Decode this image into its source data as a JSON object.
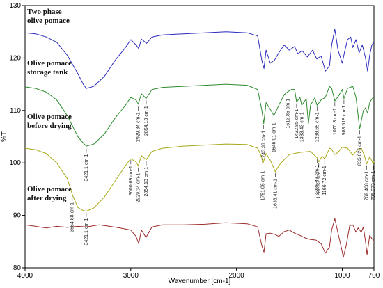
{
  "chart_data": {
    "type": "line",
    "title": "",
    "xlabel": "Wavenumber [cm-1]",
    "ylabel": "%T",
    "xlim": [
      4000,
      700
    ],
    "ylim": [
      80,
      130
    ],
    "x_ticks": [
      {
        "value": 4000,
        "label": "4000"
      },
      {
        "value": 3000,
        "label": "3000"
      },
      {
        "value": 2000,
        "label": "2000"
      },
      {
        "value": 1000,
        "label": "1000"
      },
      {
        "value": 700,
        "label": "700"
      }
    ],
    "y_ticks": [
      {
        "value": 130,
        "label": "130"
      },
      {
        "value": 120,
        "label": "120"
      },
      {
        "value": 110,
        "label": "110"
      },
      {
        "value": 100,
        "label": "100"
      },
      {
        "value": 90,
        "label": "90"
      },
      {
        "value": 80,
        "label": "80"
      }
    ],
    "series": [
      {
        "name": "Two phase olive pomace",
        "color": "#2b2bbf",
        "points": [
          [
            4000,
            124.8
          ],
          [
            3900,
            124.6
          ],
          [
            3800,
            124.0
          ],
          [
            3700,
            123.0
          ],
          [
            3600,
            120.5
          ],
          [
            3500,
            117.0
          ],
          [
            3450,
            115.0
          ],
          [
            3421,
            114.2
          ],
          [
            3350,
            114.6
          ],
          [
            3250,
            116.5
          ],
          [
            3150,
            119.5
          ],
          [
            3050,
            122.0
          ],
          [
            3000,
            123.5
          ],
          [
            2950,
            122.5
          ],
          [
            2925,
            121.8
          ],
          [
            2900,
            123.6
          ],
          [
            2850,
            122.8
          ],
          [
            2800,
            124.0
          ],
          [
            2700,
            124.4
          ],
          [
            2500,
            124.6
          ],
          [
            2300,
            124.8
          ],
          [
            2100,
            125.0
          ],
          [
            1900,
            124.8
          ],
          [
            1800,
            124.2
          ],
          [
            1760,
            119.5
          ],
          [
            1740,
            118.0
          ],
          [
            1720,
            121.5
          ],
          [
            1680,
            119.0
          ],
          [
            1640,
            119.6
          ],
          [
            1600,
            121.0
          ],
          [
            1550,
            122.5
          ],
          [
            1500,
            121.5
          ],
          [
            1450,
            122.2
          ],
          [
            1420,
            120.8
          ],
          [
            1380,
            121.4
          ],
          [
            1330,
            120.2
          ],
          [
            1280,
            121.5
          ],
          [
            1240,
            119.8
          ],
          [
            1200,
            120.4
          ],
          [
            1160,
            117.5
          ],
          [
            1120,
            118.5
          ],
          [
            1100,
            122.5
          ],
          [
            1070,
            125.5
          ],
          [
            1040,
            121.5
          ],
          [
            1000,
            119.0
          ],
          [
            980,
            121.0
          ],
          [
            950,
            123.5
          ],
          [
            920,
            124.0
          ],
          [
            900,
            122.0
          ],
          [
            870,
            123.5
          ],
          [
            840,
            121.0
          ],
          [
            810,
            122.5
          ],
          [
            780,
            120.0
          ],
          [
            760,
            117.5
          ],
          [
            740,
            120.5
          ],
          [
            720,
            122.5
          ],
          [
            700,
            123.0
          ]
        ]
      },
      {
        "name": "Olive pomace storage tank",
        "color": "#2e8b2e",
        "points": [
          [
            4000,
            114.5
          ],
          [
            3900,
            114.2
          ],
          [
            3800,
            113.5
          ],
          [
            3700,
            112.0
          ],
          [
            3600,
            109.0
          ],
          [
            3500,
            105.0
          ],
          [
            3450,
            103.8
          ],
          [
            3421,
            103.2
          ],
          [
            3350,
            103.6
          ],
          [
            3250,
            105.5
          ],
          [
            3150,
            108.5
          ],
          [
            3050,
            111.0
          ],
          [
            3000,
            112.5
          ],
          [
            2950,
            112.0
          ],
          [
            2929,
            111.2
          ],
          [
            2900,
            113.2
          ],
          [
            2854,
            112.3
          ],
          [
            2800,
            114.0
          ],
          [
            2700,
            114.4
          ],
          [
            2500,
            114.6
          ],
          [
            2300,
            114.8
          ],
          [
            2100,
            115.0
          ],
          [
            1900,
            114.8
          ],
          [
            1800,
            114.0
          ],
          [
            1760,
            110.0
          ],
          [
            1743,
            107.5
          ],
          [
            1720,
            111.5
          ],
          [
            1680,
            110.2
          ],
          [
            1646,
            109.0
          ],
          [
            1600,
            111.0
          ],
          [
            1550,
            113.0
          ],
          [
            1513,
            113.6
          ],
          [
            1480,
            114.0
          ],
          [
            1450,
            114.0
          ],
          [
            1432,
            111.6
          ],
          [
            1400,
            112.5
          ],
          [
            1383,
            111.0
          ],
          [
            1340,
            112.2
          ],
          [
            1320,
            107.5
          ],
          [
            1300,
            111.0
          ],
          [
            1260,
            112.4
          ],
          [
            1238,
            111.0
          ],
          [
            1200,
            112.0
          ],
          [
            1160,
            112.5
          ],
          [
            1120,
            114.6
          ],
          [
            1100,
            114.2
          ],
          [
            1070,
            111.8
          ],
          [
            1040,
            112.6
          ],
          [
            1000,
            114.0
          ],
          [
            984,
            112.3
          ],
          [
            950,
            114.2
          ],
          [
            900,
            114.6
          ],
          [
            870,
            112.5
          ],
          [
            835,
            106.5
          ],
          [
            800,
            110.0
          ],
          [
            780,
            110.5
          ],
          [
            760,
            109.5
          ],
          [
            740,
            111.5
          ],
          [
            720,
            112.2
          ],
          [
            700,
            112.5
          ]
        ]
      },
      {
        "name": "Olive pomace before drying",
        "color": "#a8a816",
        "points": [
          [
            4000,
            102.8
          ],
          [
            3900,
            102.5
          ],
          [
            3800,
            101.8
          ],
          [
            3700,
            100.0
          ],
          [
            3600,
            97.0
          ],
          [
            3550,
            93.8
          ],
          [
            3500,
            91.5
          ],
          [
            3450,
            90.9
          ],
          [
            3421,
            90.8
          ],
          [
            3350,
            91.4
          ],
          [
            3250,
            93.5
          ],
          [
            3150,
            96.5
          ],
          [
            3050,
            99.5
          ],
          [
            3000,
            100.8
          ],
          [
            2950,
            100.2
          ],
          [
            2929,
            99.4
          ],
          [
            2900,
            101.4
          ],
          [
            2854,
            100.6
          ],
          [
            2800,
            102.2
          ],
          [
            2700,
            102.8
          ],
          [
            2500,
            103.2
          ],
          [
            2300,
            103.4
          ],
          [
            2100,
            103.6
          ],
          [
            1900,
            103.5
          ],
          [
            1800,
            102.8
          ],
          [
            1760,
            101.0
          ],
          [
            1751,
            99.8
          ],
          [
            1720,
            101.8
          ],
          [
            1680,
            100.5
          ],
          [
            1633,
            98.3
          ],
          [
            1600,
            99.5
          ],
          [
            1550,
            100.6
          ],
          [
            1500,
            101.6
          ],
          [
            1450,
            101.8
          ],
          [
            1400,
            102.0
          ],
          [
            1300,
            102.2
          ],
          [
            1238,
            101.0
          ],
          [
            1222,
            100.2
          ],
          [
            1190,
            101.3
          ],
          [
            1166,
            100.8
          ],
          [
            1120,
            102.8
          ],
          [
            1100,
            102.6
          ],
          [
            1070,
            101.6
          ],
          [
            1040,
            102.0
          ],
          [
            1000,
            103.0
          ],
          [
            950,
            102.8
          ],
          [
            900,
            101.5
          ],
          [
            860,
            102.4
          ],
          [
            820,
            102.8
          ],
          [
            790,
            101.4
          ],
          [
            769,
            99.8
          ],
          [
            740,
            101.2
          ],
          [
            720,
            100.4
          ],
          [
            706,
            99.8
          ],
          [
            700,
            100.4
          ]
        ]
      },
      {
        "name": "Olive pomace after drying",
        "color": "#9b2b2b",
        "points": [
          [
            4000,
            88.2
          ],
          [
            3900,
            87.9
          ],
          [
            3800,
            87.6
          ],
          [
            3700,
            87.9
          ],
          [
            3600,
            87.7
          ],
          [
            3500,
            87.9
          ],
          [
            3421,
            87.8
          ],
          [
            3300,
            88.2
          ],
          [
            3200,
            87.9
          ],
          [
            3100,
            87.6
          ],
          [
            3000,
            87.2
          ],
          [
            2950,
            86.0
          ],
          [
            2925,
            84.6
          ],
          [
            2900,
            87.2
          ],
          [
            2855,
            85.8
          ],
          [
            2800,
            87.8
          ],
          [
            2700,
            88.2
          ],
          [
            2500,
            88.2
          ],
          [
            2300,
            88.3
          ],
          [
            2100,
            88.6
          ],
          [
            1900,
            88.4
          ],
          [
            1800,
            87.8
          ],
          [
            1760,
            84.2
          ],
          [
            1740,
            83.0
          ],
          [
            1720,
            86.5
          ],
          [
            1680,
            86.6
          ],
          [
            1640,
            86.4
          ],
          [
            1600,
            86.0
          ],
          [
            1550,
            86.9
          ],
          [
            1500,
            87.2
          ],
          [
            1450,
            86.6
          ],
          [
            1400,
            86.2
          ],
          [
            1350,
            85.7
          ],
          [
            1300,
            85.4
          ],
          [
            1250,
            85.3
          ],
          [
            1200,
            84.6
          ],
          [
            1160,
            82.8
          ],
          [
            1120,
            84.0
          ],
          [
            1100,
            87.2
          ],
          [
            1070,
            89.4
          ],
          [
            1040,
            86.6
          ],
          [
            1010,
            84.0
          ],
          [
            990,
            82.0
          ],
          [
            960,
            84.5
          ],
          [
            930,
            88.0
          ],
          [
            900,
            88.2
          ],
          [
            870,
            86.8
          ],
          [
            850,
            87.6
          ],
          [
            820,
            86.8
          ],
          [
            800,
            87.8
          ],
          [
            780,
            85.0
          ],
          [
            765,
            82.5
          ],
          [
            740,
            86.2
          ],
          [
            720,
            85.6
          ],
          [
            700,
            85.2
          ]
        ]
      }
    ],
    "sample_labels": [
      {
        "lines": [
          "Two phase",
          "olive pomace"
        ],
        "x": 3980,
        "y": 128.4
      },
      {
        "lines": [
          "Olive pomace",
          "storage tank"
        ],
        "x": 3980,
        "y": 118.6
      },
      {
        "lines": [
          "Olive pomace",
          "before drying"
        ],
        "x": 3980,
        "y": 108.4
      },
      {
        "lines": [
          "Olive pomace",
          "after drying"
        ],
        "x": 3980,
        "y": 94.6
      }
    ],
    "peak_annotations": [
      {
        "text": "3421.1 cm-1",
        "x": 3421,
        "y": 103.0
      },
      {
        "text": "2929.34 cm-1",
        "x": 2929,
        "y": 111.0
      },
      {
        "text": "2854.13 cm-1",
        "x": 2854,
        "y": 112.2
      },
      {
        "text": "1743.33 cm-1",
        "x": 1743,
        "y": 107.5
      },
      {
        "text": "1646.91 cm-1",
        "x": 1646,
        "y": 109.0
      },
      {
        "text": "1513.85 cm-1",
        "x": 1513,
        "y": 113.6
      },
      {
        "text": "1432.85 cm-1",
        "x": 1432,
        "y": 111.6
      },
      {
        "text": "1383.43 cm-1",
        "x": 1383,
        "y": 111.0
      },
      {
        "text": "1238.65 cm-1",
        "x": 1238,
        "y": 111.0
      },
      {
        "text": "1070.3 cm-1",
        "x": 1070,
        "y": 111.8
      },
      {
        "text": "983.518 cm-1",
        "x": 984,
        "y": 112.3
      },
      {
        "text": "835.026 cm-1",
        "x": 835,
        "y": 106.5
      },
      {
        "text": "3000.69 cm-1",
        "x": 3000,
        "y": 100.8
      },
      {
        "text": "2929.34 cm-1",
        "x": 2929,
        "y": 99.4
      },
      {
        "text": "2854.13 cm-1",
        "x": 2854,
        "y": 100.6
      },
      {
        "text": "1751.05 cm-1",
        "x": 1751,
        "y": 99.8
      },
      {
        "text": "1633.41 cm-1",
        "x": 1633,
        "y": 98.3
      },
      {
        "text": "1238.43 cm-1",
        "x": 1238,
        "y": 101.0
      },
      {
        "text": "1222.85 cm-1",
        "x": 1222,
        "y": 100.2
      },
      {
        "text": "1166.72 cm-1",
        "x": 1166,
        "y": 100.8
      },
      {
        "text": "769.468 cm-1",
        "x": 769,
        "y": 99.8
      },
      {
        "text": "706.073 cm-1",
        "x": 706,
        "y": 99.8
      },
      {
        "text": "3554.88 cm-1",
        "x": 3554,
        "y": 93.8
      },
      {
        "text": "3421.1 cm-1",
        "x": 3421,
        "y": 90.8
      }
    ]
  }
}
